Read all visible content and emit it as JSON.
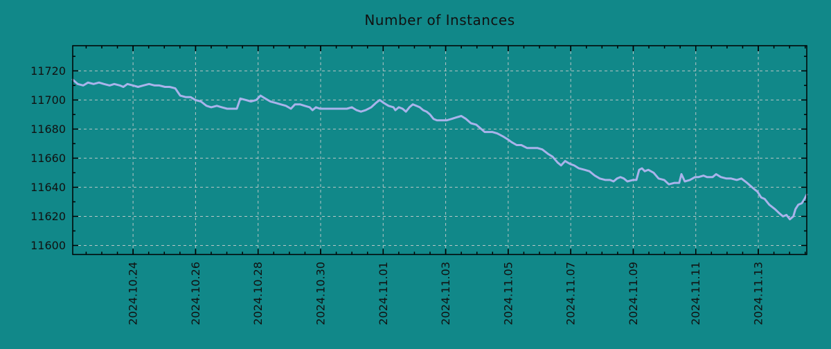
{
  "title": "Number of Instances",
  "colors": {
    "background": "#118889",
    "line": "#a9b3eb",
    "grid": "#b9c6c6",
    "axis": "#000000",
    "text": "#111111"
  },
  "chart_data": {
    "type": "line",
    "title": "Number of Instances",
    "xlabel": "",
    "ylabel": "",
    "legend": "none",
    "grid": true,
    "x_epoch": "2024-10-22 00:00",
    "x_unit": "days_since_epoch",
    "xlim": [
      0.07,
      23.55
    ],
    "ylim": [
      11593.8,
      11737.3
    ],
    "x_major_ticks": {
      "t": [
        2,
        4,
        6,
        8,
        10,
        12,
        14,
        16,
        18,
        20,
        22
      ],
      "labels": [
        "2024.10.24",
        "2024.10.26",
        "2024.10.28",
        "2024.10.30",
        "2024.11.01",
        "2024.11.03",
        "2024.11.05",
        "2024.11.07",
        "2024.11.09",
        "2024.11.11",
        "2024.11.13"
      ]
    },
    "x_minor_step": 0.5,
    "y_major_ticks": [
      11600,
      11620,
      11640,
      11660,
      11680,
      11700,
      11720
    ],
    "y_minor_step": 10,
    "series": [
      {
        "name": "instances",
        "x": [
          0.07,
          0.23,
          0.41,
          0.56,
          0.74,
          0.91,
          1.07,
          1.25,
          1.4,
          1.58,
          1.69,
          1.82,
          2.0,
          2.16,
          2.33,
          2.51,
          2.69,
          2.84,
          3.02,
          3.17,
          3.35,
          3.51,
          3.68,
          3.84,
          3.99,
          4.17,
          4.35,
          4.5,
          4.68,
          4.84,
          5.01,
          5.17,
          5.32,
          5.43,
          5.61,
          5.77,
          5.94,
          6.08,
          6.23,
          6.39,
          6.56,
          6.72,
          6.89,
          7.05,
          7.18,
          7.34,
          7.49,
          7.65,
          7.74,
          7.85,
          7.98,
          8.16,
          8.33,
          8.51,
          8.67,
          8.84,
          9.0,
          9.15,
          9.29,
          9.44,
          9.62,
          9.77,
          9.89,
          10.02,
          10.17,
          10.33,
          10.39,
          10.5,
          10.62,
          10.73,
          10.84,
          10.95,
          11.06,
          11.17,
          11.28,
          11.39,
          11.5,
          11.61,
          11.72,
          11.88,
          12.03,
          12.19,
          12.34,
          12.5,
          12.65,
          12.81,
          12.98,
          13.14,
          13.25,
          13.38,
          13.49,
          13.65,
          13.83,
          13.98,
          14.11,
          14.27,
          14.42,
          14.6,
          14.76,
          14.93,
          15.09,
          15.27,
          15.42,
          15.58,
          15.69,
          15.82,
          15.98,
          16.11,
          16.26,
          16.44,
          16.6,
          16.77,
          16.93,
          17.11,
          17.26,
          17.37,
          17.48,
          17.59,
          17.7,
          17.81,
          17.99,
          18.1,
          18.19,
          18.28,
          18.37,
          18.48,
          18.65,
          18.81,
          18.99,
          19.14,
          19.32,
          19.47,
          19.54,
          19.65,
          19.81,
          19.98,
          20.09,
          20.25,
          20.36,
          20.54,
          20.65,
          20.8,
          20.98,
          21.13,
          21.31,
          21.46,
          21.64,
          21.8,
          21.91,
          21.97,
          22.09,
          22.2,
          22.35,
          22.53,
          22.68,
          22.79,
          22.9,
          23.01,
          23.12,
          23.19,
          23.28,
          23.39,
          23.48,
          23.55
        ],
        "y": [
          11714,
          11711,
          11710,
          11712,
          11711,
          11712,
          11711,
          11710,
          11711,
          11710,
          11709,
          11711,
          11710,
          11709,
          11710,
          11711,
          11710,
          11710,
          11709,
          11709,
          11708,
          11703,
          11702,
          11702,
          11700,
          11699,
          11696,
          11695,
          11696,
          11695,
          11694,
          11694,
          11694,
          11701,
          11700,
          11699,
          11700,
          11703,
          11701,
          11699,
          11698,
          11697,
          11696,
          11694,
          11697,
          11697,
          11696,
          11695,
          11693,
          11695,
          11694,
          11694,
          11694,
          11694,
          11694,
          11694,
          11695,
          11693,
          11692,
          11693,
          11695,
          11698,
          11700,
          11698,
          11696,
          11695,
          11693,
          11695,
          11694,
          11692,
          11695,
          11697,
          11696,
          11695,
          11693,
          11692,
          11690,
          11687,
          11686,
          11686,
          11686,
          11687,
          11688,
          11689,
          11687,
          11684,
          11683,
          11680,
          11678,
          11678,
          11678,
          11677,
          11675,
          11673,
          11671,
          11669,
          11669,
          11667,
          11667,
          11667,
          11666,
          11663,
          11661,
          11657,
          11655,
          11658,
          11656,
          11655,
          11653,
          11652,
          11651,
          11648,
          11646,
          11645,
          11645,
          11644,
          11646,
          11647,
          11646,
          11644,
          11645,
          11645,
          11652,
          11653,
          11651,
          11652,
          11650,
          11646,
          11645,
          11642,
          11643,
          11643,
          11649,
          11644,
          11645,
          11647,
          11647,
          11648,
          11647,
          11647,
          11649,
          11647,
          11646,
          11646,
          11645,
          11646,
          11643,
          11640,
          11638,
          11637,
          11633,
          11632,
          11628,
          11625,
          11622,
          11620,
          11621,
          11618,
          11620,
          11625,
          11628,
          11629,
          11632,
          11635
        ]
      }
    ]
  }
}
